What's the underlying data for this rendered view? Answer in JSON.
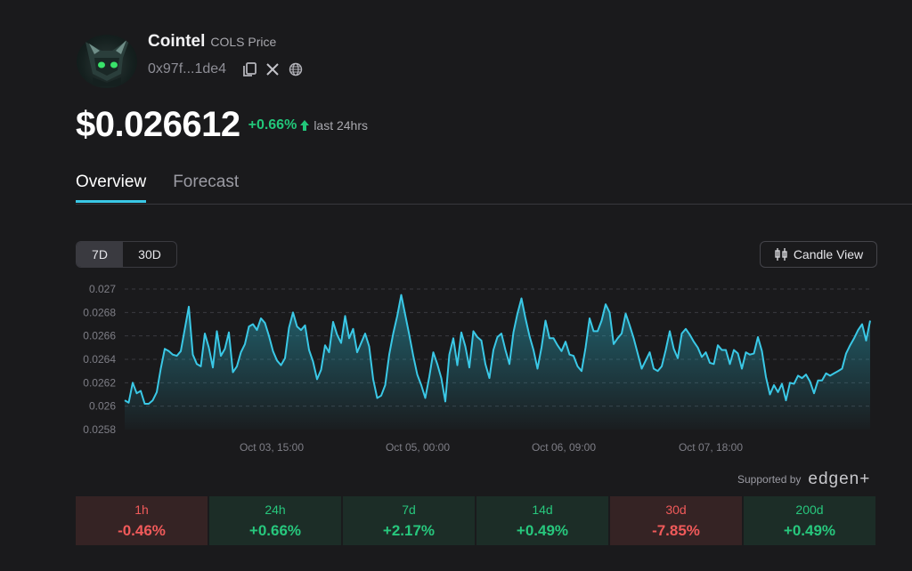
{
  "token": {
    "name": "Cointel",
    "subtitle": "COLS Price",
    "address": "0x97f...1de4",
    "icons": [
      "copy-icon",
      "x-twitter-icon",
      "globe-icon"
    ]
  },
  "price": {
    "value": "$0.026612",
    "change": "+0.66%",
    "period": "last 24hrs"
  },
  "tabs": [
    {
      "label": "Overview",
      "active": true
    },
    {
      "label": "Forecast",
      "active": false
    }
  ],
  "range": {
    "options": [
      "7D",
      "30D"
    ],
    "selected": "7D"
  },
  "candle_button": {
    "label": "Candle View",
    "icon": "candlestick-icon"
  },
  "supported": {
    "label": "Supported by",
    "brand": "edgen+"
  },
  "stats": [
    {
      "label": "1h",
      "value": "-0.46%",
      "direction": "down"
    },
    {
      "label": "24h",
      "value": "+0.66%",
      "direction": "up"
    },
    {
      "label": "7d",
      "value": "+2.17%",
      "direction": "up"
    },
    {
      "label": "14d",
      "value": "+0.49%",
      "direction": "up"
    },
    {
      "label": "30d",
      "value": "-7.85%",
      "direction": "down"
    },
    {
      "label": "200d",
      "value": "+0.49%",
      "direction": "up"
    }
  ],
  "colors": {
    "accent": "#3ac8e6",
    "positive": "#22c77a",
    "negative": "#f05a5a",
    "background": "#1a1a1c"
  },
  "chart_data": {
    "type": "area",
    "y_ticks": [
      "0.027",
      "0.0268",
      "0.0266",
      "0.0264",
      "0.0262",
      "0.026",
      "0.0258"
    ],
    "ylim": [
      0.0258,
      0.027
    ],
    "x_ticks": [
      "Oct 03, 15:00",
      "Oct 05, 00:00",
      "Oct 06, 09:00",
      "Oct 07, 18:00"
    ],
    "grid": true,
    "values": [
      0.02605,
      0.02603,
      0.0262,
      0.02611,
      0.02613,
      0.02602,
      0.02602,
      0.02605,
      0.02612,
      0.02632,
      0.02649,
      0.02647,
      0.02644,
      0.02643,
      0.02647,
      0.02666,
      0.02685,
      0.02644,
      0.02636,
      0.02634,
      0.02662,
      0.0265,
      0.02633,
      0.02664,
      0.02643,
      0.02649,
      0.02663,
      0.02629,
      0.02634,
      0.02646,
      0.02653,
      0.02668,
      0.0267,
      0.02665,
      0.02675,
      0.02671,
      0.0266,
      0.02647,
      0.02639,
      0.02635,
      0.02641,
      0.02667,
      0.0268,
      0.02668,
      0.02665,
      0.02669,
      0.02648,
      0.02638,
      0.02623,
      0.02631,
      0.02652,
      0.02646,
      0.02672,
      0.02661,
      0.02654,
      0.02677,
      0.02658,
      0.02666,
      0.02646,
      0.02654,
      0.02662,
      0.02651,
      0.02623,
      0.02607,
      0.02609,
      0.02618,
      0.02644,
      0.02662,
      0.02677,
      0.02695,
      0.02678,
      0.02661,
      0.02643,
      0.02627,
      0.02618,
      0.02607,
      0.02625,
      0.02646,
      0.02636,
      0.02624,
      0.02604,
      0.02644,
      0.02658,
      0.02635,
      0.02663,
      0.02651,
      0.02633,
      0.02664,
      0.02659,
      0.02656,
      0.02636,
      0.02624,
      0.02648,
      0.02659,
      0.02662,
      0.02648,
      0.02636,
      0.02663,
      0.02679,
      0.02692,
      0.02675,
      0.0266,
      0.02648,
      0.02632,
      0.0265,
      0.02673,
      0.02658,
      0.02658,
      0.02652,
      0.02647,
      0.02655,
      0.02644,
      0.02643,
      0.02634,
      0.0263,
      0.0265,
      0.02675,
      0.02664,
      0.02664,
      0.02673,
      0.02687,
      0.0268,
      0.02653,
      0.02658,
      0.02662,
      0.02679,
      0.02669,
      0.02658,
      0.02645,
      0.02632,
      0.02639,
      0.02646,
      0.02632,
      0.0263,
      0.02634,
      0.02648,
      0.02664,
      0.02649,
      0.02641,
      0.02662,
      0.02666,
      0.02661,
      0.02655,
      0.0265,
      0.02642,
      0.02646,
      0.02637,
      0.02636,
      0.02652,
      0.02648,
      0.02648,
      0.02636,
      0.02648,
      0.02645,
      0.02632,
      0.02646,
      0.02644,
      0.02645,
      0.02659,
      0.02647,
      0.02625,
      0.0261,
      0.02618,
      0.02612,
      0.02619,
      0.02605,
      0.0262,
      0.02619,
      0.02626,
      0.02624,
      0.02627,
      0.02621,
      0.02611,
      0.02622,
      0.02622,
      0.02628,
      0.02626,
      0.02628,
      0.0263,
      0.02632,
      0.02645,
      0.02652,
      0.02658,
      0.02665,
      0.0267,
      0.02656,
      0.02673
    ]
  }
}
